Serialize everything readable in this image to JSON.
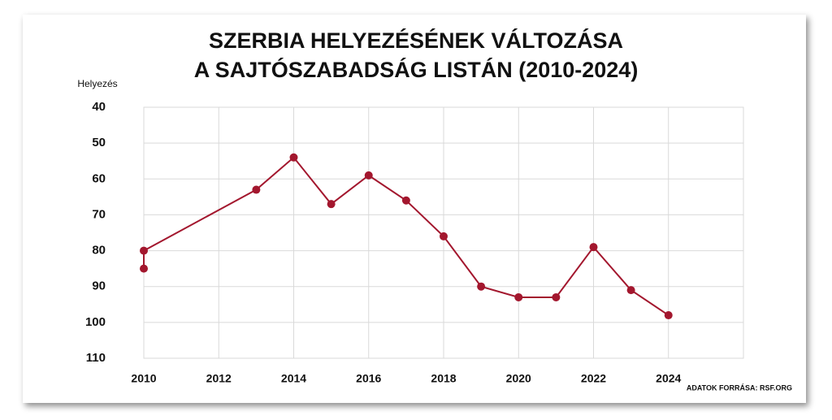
{
  "chart_data": {
    "type": "line",
    "title_lines": [
      "SZERBIA HELYEZÉSÉNEK VÁLTOZÁSA",
      "A SAJTÓSZABADSÁG LISTÁN (2010-2024)"
    ],
    "y_label": "Helyezés",
    "source": "ADATOK FORRÁSA: RSF.ORG",
    "x": [
      2010,
      2010,
      2013,
      2014,
      2015,
      2016,
      2017,
      2018,
      2019,
      2020,
      2021,
      2022,
      2023,
      2024
    ],
    "series": [
      {
        "color": "#a3172e",
        "values": [
          85,
          80,
          63,
          54,
          67,
          59,
          66,
          76,
          90,
          93,
          93,
          79,
          91,
          98
        ]
      }
    ],
    "xlim": [
      2010,
      2026
    ],
    "xticks": [
      2010,
      2012,
      2014,
      2016,
      2018,
      2020,
      2022,
      2024
    ],
    "ylim": [
      40,
      110
    ],
    "yticks": [
      40,
      50,
      60,
      70,
      80,
      90,
      100,
      110
    ],
    "y_inverted": true,
    "grid": true
  }
}
